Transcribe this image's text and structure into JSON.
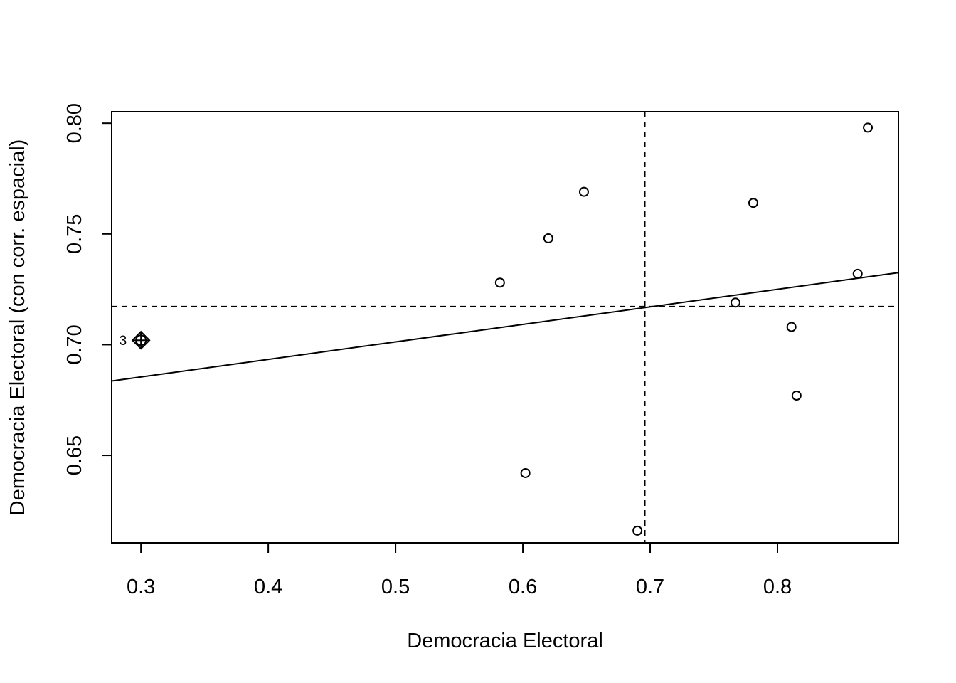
{
  "chart_data": {
    "type": "scatter",
    "title": "",
    "xlabel": "Democracia Electoral",
    "ylabel": "Democracia Electoral (con corr. espacial)",
    "xlim": [
      0.277,
      0.895
    ],
    "ylim": [
      0.6105,
      0.8052
    ],
    "x_ticks": [
      "0.3",
      "0.4",
      "0.5",
      "0.6",
      "0.7",
      "0.8"
    ],
    "x_tick_values": [
      0.3,
      0.4,
      0.5,
      0.6,
      0.7,
      0.8
    ],
    "y_ticks": [
      "0.65",
      "0.70",
      "0.75",
      "0.80"
    ],
    "y_tick_values": [
      0.65,
      0.7,
      0.75,
      0.8
    ],
    "grid": false,
    "points": [
      {
        "x": 0.3,
        "y": 0.702,
        "influential": true,
        "label": "3"
      },
      {
        "x": 0.582,
        "y": 0.728
      },
      {
        "x": 0.602,
        "y": 0.642
      },
      {
        "x": 0.62,
        "y": 0.748
      },
      {
        "x": 0.648,
        "y": 0.769
      },
      {
        "x": 0.69,
        "y": 0.616
      },
      {
        "x": 0.767,
        "y": 0.719
      },
      {
        "x": 0.781,
        "y": 0.764
      },
      {
        "x": 0.811,
        "y": 0.708
      },
      {
        "x": 0.815,
        "y": 0.677
      },
      {
        "x": 0.863,
        "y": 0.732
      },
      {
        "x": 0.871,
        "y": 0.798
      }
    ],
    "regression_line": {
      "x": [
        0.277,
        0.895
      ],
      "y": [
        0.6836,
        0.7325
      ]
    },
    "mean_x": 0.6958,
    "mean_y": 0.7172
  }
}
